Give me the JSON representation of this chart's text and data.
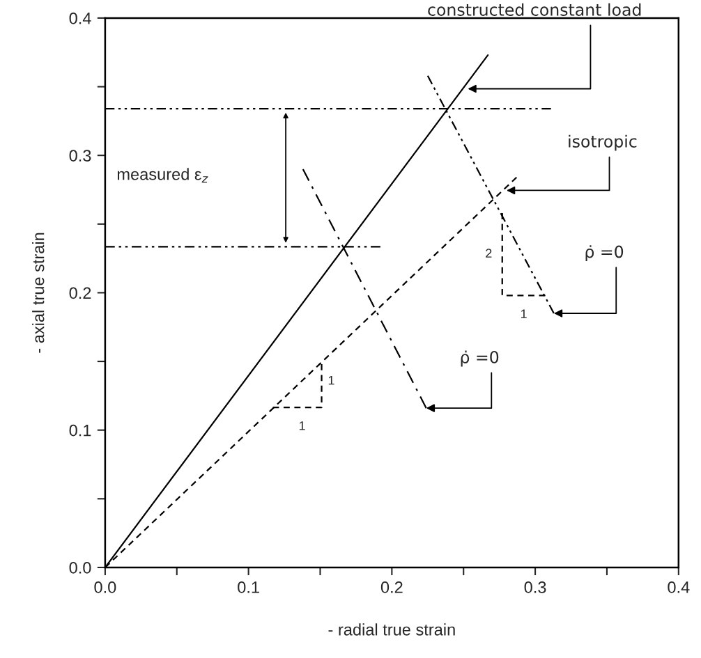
{
  "chart_data": {
    "type": "line",
    "xlabel": "- radial true strain",
    "ylabel": "- axial true strain",
    "xlim": [
      0,
      0.4
    ],
    "ylim": [
      0,
      0.4
    ],
    "xticks": [
      {
        "value": 0,
        "label": "0.0"
      },
      {
        "value": 0.05,
        "label": null
      },
      0.1,
      {
        "value": 0.15,
        "label": null
      },
      0.2,
      {
        "value": 0.25,
        "label": null
      },
      0.3,
      {
        "value": 0.35,
        "label": null
      },
      0.4
    ],
    "yticks": [
      {
        "value": 0,
        "label": "0.0"
      },
      {
        "value": 0.05,
        "label": null
      },
      0.1,
      {
        "value": 0.15,
        "label": null
      },
      0.2,
      {
        "value": 0.25,
        "label": null
      },
      0.3,
      {
        "value": 0.35,
        "label": null
      },
      0.4
    ],
    "grid": false,
    "legend": false,
    "marker": "none",
    "series": [
      {
        "color": "#000000",
        "line_style": "solid",
        "x": [
          0,
          0.267
        ],
        "values": [
          0,
          0.373
        ]
      },
      {
        "color": "#000000",
        "line_style": "dashed",
        "x": [
          0,
          0.287
        ],
        "values": [
          0,
          0.284
        ]
      },
      {
        "color": "#000000",
        "line_style": "dashdotdot",
        "x": [
          0,
          0.311
        ],
        "values": [
          0.334,
          0.334
        ]
      },
      {
        "color": "#000000",
        "line_style": "dashdotdot",
        "x": [
          0,
          0.192
        ],
        "values": [
          0.2335,
          0.2335
        ]
      },
      {
        "color": "#000000",
        "line_style": "dashdotdot",
        "x": [
          0.225,
          0.313
        ],
        "values": [
          0.358,
          0.185
        ]
      },
      {
        "color": "#000000",
        "line_style": "dashdot",
        "x": [
          0.138,
          0.224
        ],
        "values": [
          0.29,
          0.116
        ]
      },
      {
        "color": "#000000",
        "line_style": "dashed",
        "x": [
          0.117,
          0.151,
          0.151
        ],
        "values": [
          0.1165,
          0.1165,
          0.148
        ]
      },
      {
        "color": "#000000",
        "line_style": "dashed",
        "x": [
          0.277,
          0.277,
          0.307
        ],
        "values": [
          0.258,
          0.198,
          0.198
        ]
      }
    ],
    "annotations": [
      {
        "text": "constructed constant load",
        "x": 0.253,
        "y": 0.3485
      },
      {
        "text": "isotropic",
        "x": 0.28,
        "y": 0.2745
      },
      "measured ε$_{z}$",
      {
        "text": "ρ̇ =0",
        "x": 0.313,
        "y": 0.185
      },
      {
        "text": "ρ̇ =0",
        "x": 0.224,
        "y": 0.116
      },
      {
        "text": "1",
        "x": 0.134,
        "y": 0.1165
      },
      {
        "text": "1",
        "x": 0.151,
        "y": 0.132
      },
      {
        "text": "2",
        "x": 0.277,
        "y": 0.228
      },
      {
        "text": "1",
        "x": 0.292,
        "y": 0.198
      }
    ]
  }
}
